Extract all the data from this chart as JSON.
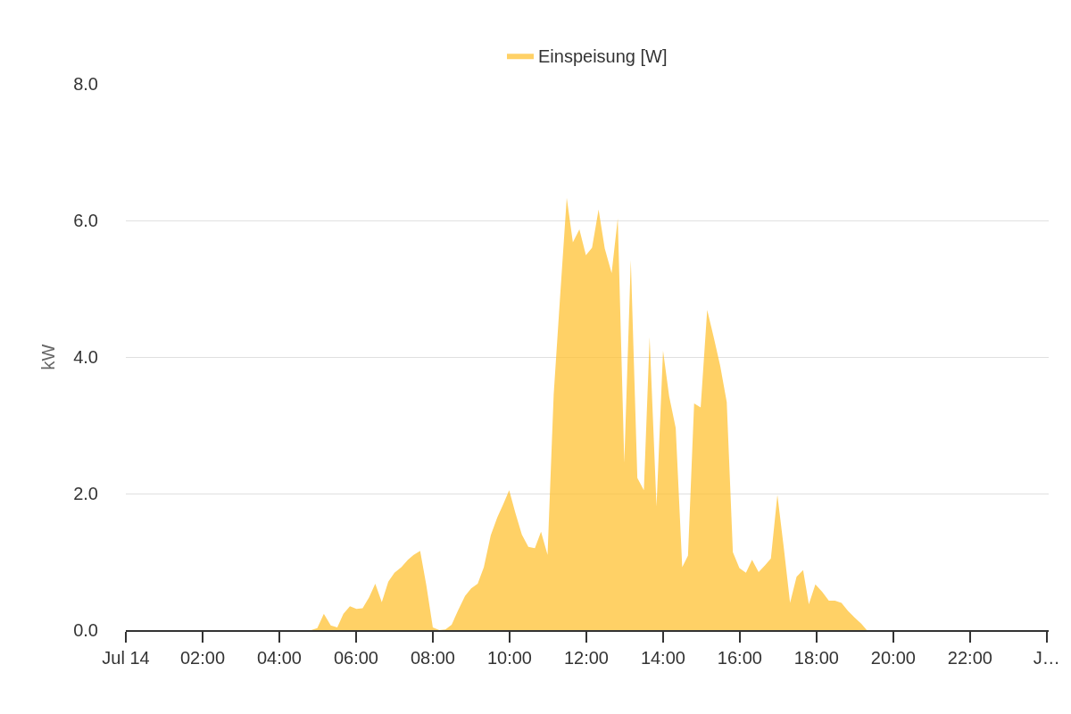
{
  "chart_data": {
    "type": "area",
    "ylabel": "kW",
    "legend": "top",
    "grid": "y",
    "x": [
      0,
      4.83,
      4.99,
      5.16,
      5.34,
      5.51,
      5.67,
      5.84,
      6.01,
      6.17,
      6.34,
      6.5,
      6.67,
      6.84,
      7.0,
      7.18,
      7.35,
      7.5,
      7.67,
      7.83,
      8.0,
      8.17,
      8.33,
      8.49,
      8.66,
      8.84,
      9.0,
      9.17,
      9.33,
      9.51,
      9.68,
      9.84,
      9.99,
      10.15,
      10.32,
      10.49,
      10.66,
      10.82,
      10.99,
      11.15,
      11.32,
      11.49,
      11.65,
      11.82,
      11.99,
      12.15,
      12.32,
      12.48,
      12.66,
      12.82,
      12.99,
      13.16,
      13.33,
      13.5,
      13.65,
      13.83,
      14.0,
      14.16,
      14.33,
      14.5,
      14.65,
      14.81,
      14.98,
      15.15,
      15.32,
      15.49,
      15.66,
      15.82,
      15.99,
      16.16,
      16.32,
      16.49,
      16.66,
      16.81,
      16.98,
      17.15,
      17.31,
      17.48,
      17.65,
      17.8,
      17.97,
      18.15,
      18.32,
      18.48,
      18.65,
      18.82,
      19.0,
      19.17,
      19.31
    ],
    "series": [
      {
        "name": "Einspeisung [W]",
        "color": "#ffc233",
        "values": [
          0,
          0,
          0.03,
          0.24,
          0.07,
          0.04,
          0.24,
          0.35,
          0.31,
          0.32,
          0.48,
          0.68,
          0.41,
          0.71,
          0.84,
          0.92,
          1.03,
          1.1,
          1.16,
          0.66,
          0.04,
          0,
          0.01,
          0.08,
          0.29,
          0.5,
          0.61,
          0.68,
          0.92,
          1.39,
          1.65,
          1.85,
          2.05,
          1.72,
          1.4,
          1.22,
          1.2,
          1.44,
          1.1,
          3.45,
          4.91,
          6.33,
          5.68,
          5.87,
          5.49,
          5.6,
          6.16,
          5.59,
          5.23,
          6.03,
          2.45,
          5.42,
          2.23,
          2.05,
          4.29,
          1.81,
          4.09,
          3.42,
          2.96,
          0.92,
          1.09,
          3.32,
          3.26,
          4.69,
          4.29,
          3.87,
          3.34,
          1.14,
          0.91,
          0.84,
          1.03,
          0.85,
          0.95,
          1.05,
          1.98,
          1.19,
          0.4,
          0.78,
          0.88,
          0.38,
          0.67,
          0.56,
          0.43,
          0.43,
          0.4,
          0.28,
          0.18,
          0.09,
          0
        ]
      }
    ],
    "xlim": [
      0,
      24.05
    ],
    "xticks": [
      {
        "value": 0,
        "label": "Jul 14"
      },
      {
        "value": 2,
        "label": "02:00"
      },
      {
        "value": 4,
        "label": "04:00"
      },
      {
        "value": 6,
        "label": "06:00"
      },
      {
        "value": 8,
        "label": "08:00"
      },
      {
        "value": 10,
        "label": "10:00"
      },
      {
        "value": 12,
        "label": "12:00"
      },
      {
        "value": 14,
        "label": "14:00"
      },
      {
        "value": 16,
        "label": "16:00"
      },
      {
        "value": 18,
        "label": "18:00"
      },
      {
        "value": 20,
        "label": "20:00"
      },
      {
        "value": 22,
        "label": "22:00"
      },
      {
        "value": 24,
        "label": "J…"
      }
    ],
    "ylim": [
      0,
      8
    ],
    "yticks": [
      {
        "value": 0,
        "label": "0.0"
      },
      {
        "value": 2,
        "label": "2.0"
      },
      {
        "value": 4,
        "label": "4.0"
      },
      {
        "value": 6,
        "label": "6.0"
      },
      {
        "value": 8,
        "label": "8.0"
      }
    ]
  }
}
